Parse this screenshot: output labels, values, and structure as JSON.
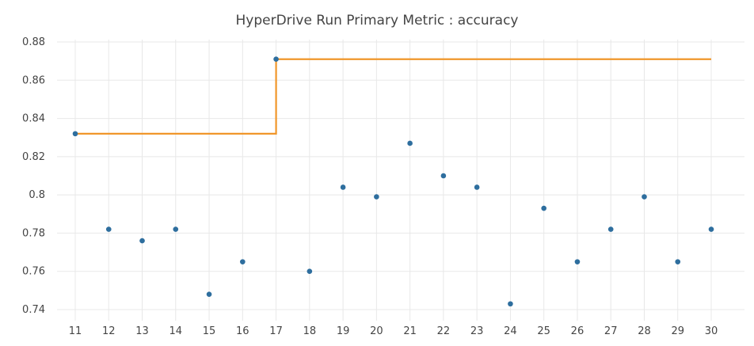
{
  "chart_data": {
    "type": "scatter",
    "title": "HyperDrive Run Primary Metric : accuracy",
    "xlabel": "",
    "ylabel": "",
    "x_ticks": [
      11,
      12,
      13,
      14,
      15,
      16,
      17,
      18,
      19,
      20,
      21,
      22,
      23,
      24,
      25,
      26,
      27,
      28,
      29,
      30
    ],
    "y_ticks": [
      0.74,
      0.76,
      0.78,
      0.8,
      0.82,
      0.84,
      0.86,
      0.88
    ],
    "y_tick_labels": [
      "0.74",
      "0.76",
      "0.78",
      "0.8",
      "0.82",
      "0.84",
      "0.86",
      "0.88"
    ],
    "xlim": [
      10.5,
      31
    ],
    "ylim": [
      0.735,
      0.88
    ],
    "grid": true,
    "series": [
      {
        "kind": "scatter",
        "color": "#2e6e9e",
        "x": [
          11,
          12,
          13,
          14,
          15,
          16,
          17,
          18,
          19,
          20,
          21,
          22,
          23,
          24,
          25,
          26,
          27,
          28,
          29,
          30
        ],
        "y": [
          0.832,
          0.782,
          0.776,
          0.782,
          0.748,
          0.765,
          0.871,
          0.76,
          0.804,
          0.799,
          0.827,
          0.81,
          0.804,
          0.743,
          0.793,
          0.765,
          0.782,
          0.799,
          0.765,
          0.782
        ]
      },
      {
        "kind": "step-line",
        "color": "#f0962a",
        "x": [
          11,
          17,
          17,
          30
        ],
        "y": [
          0.832,
          0.832,
          0.871,
          0.871
        ]
      }
    ]
  }
}
